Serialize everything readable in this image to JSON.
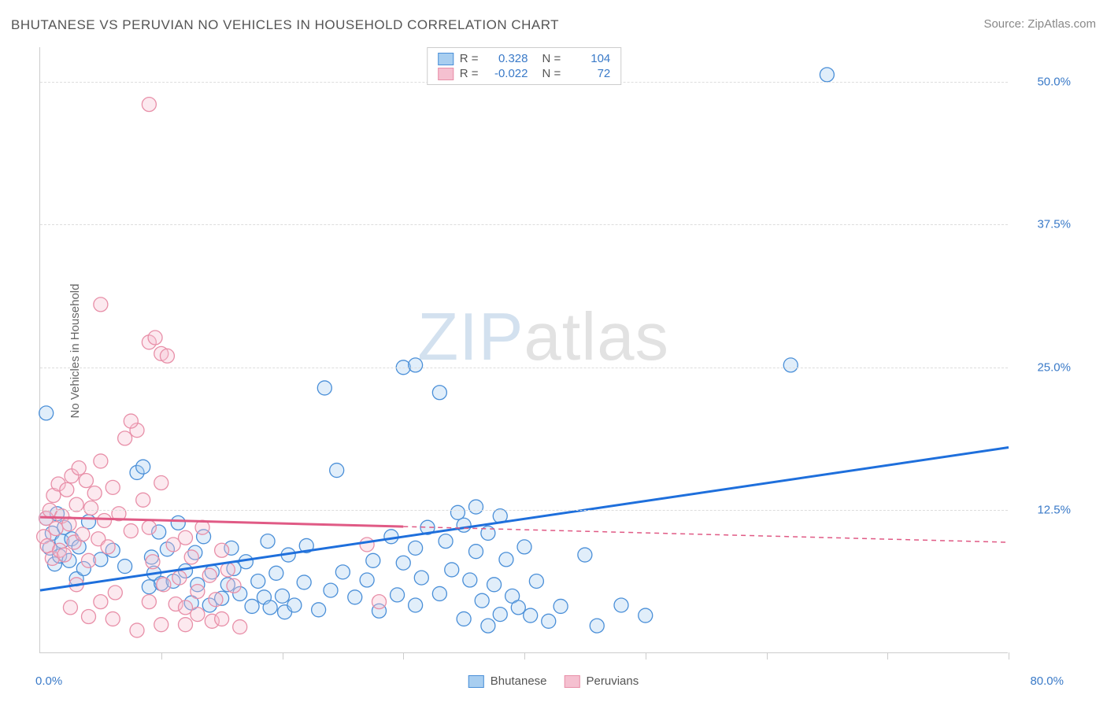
{
  "title": "BHUTANESE VS PERUVIAN NO VEHICLES IN HOUSEHOLD CORRELATION CHART",
  "source": "Source: ZipAtlas.com",
  "chart": {
    "type": "scatter",
    "ylabel": "No Vehicles in Household",
    "xlim": [
      0,
      80
    ],
    "ylim": [
      0,
      53
    ],
    "xtick_step": 10,
    "ytick_step": 12.5,
    "xaxis_min_label": "0.0%",
    "xaxis_max_label": "80.0%",
    "ytick_labels": [
      "12.5%",
      "25.0%",
      "37.5%",
      "50.0%"
    ],
    "background_color": "#ffffff",
    "grid_color": "#dddddd",
    "axis_color": "#cccccc",
    "tick_label_color": "#3a7ac8",
    "axis_label_color": "#666666",
    "marker_radius": 9,
    "marker_stroke_width": 1.3,
    "marker_fill_opacity": 0.35,
    "trend_line_width": 3,
    "trend_dash_pattern": "6,5",
    "watermark": {
      "part1": "ZIP",
      "part2": "atlas"
    }
  },
  "series": [
    {
      "name": "Bhutanese",
      "color_stroke": "#4a8fd8",
      "color_fill": "#a8cef0",
      "trend_color": "#1e6fdc",
      "R": "0.328",
      "N": "104",
      "trend": {
        "x1": 0,
        "y1": 5.5,
        "x2": 80,
        "y2": 18.0,
        "solid_until_x": 80
      },
      "points": [
        [
          0.5,
          11.8
        ],
        [
          0.8,
          9.2
        ],
        [
          1.0,
          10.5
        ],
        [
          1.2,
          7.8
        ],
        [
          1.4,
          12.2
        ],
        [
          1.6,
          8.5
        ],
        [
          1.8,
          9.8
        ],
        [
          2.0,
          11.0
        ],
        [
          2.4,
          8.1
        ],
        [
          2.6,
          10.0
        ],
        [
          3.0,
          6.5
        ],
        [
          3.2,
          9.3
        ],
        [
          3.6,
          7.4
        ],
        [
          4.0,
          11.5
        ],
        [
          5.0,
          8.2
        ],
        [
          6.0,
          9.0
        ],
        [
          7.0,
          7.6
        ],
        [
          8.0,
          15.8
        ],
        [
          8.5,
          16.3
        ],
        [
          9.0,
          5.8
        ],
        [
          9.2,
          8.4
        ],
        [
          9.4,
          7.0
        ],
        [
          9.8,
          10.6
        ],
        [
          10.0,
          6.1
        ],
        [
          10.5,
          9.1
        ],
        [
          11.0,
          6.3
        ],
        [
          11.4,
          11.4
        ],
        [
          12.0,
          7.2
        ],
        [
          12.5,
          4.4
        ],
        [
          12.8,
          8.8
        ],
        [
          13.0,
          6.0
        ],
        [
          13.5,
          10.2
        ],
        [
          14.0,
          4.2
        ],
        [
          14.2,
          7.1
        ],
        [
          15.0,
          4.8
        ],
        [
          15.5,
          6.0
        ],
        [
          15.8,
          9.2
        ],
        [
          16.0,
          7.4
        ],
        [
          16.5,
          5.2
        ],
        [
          17.0,
          8.0
        ],
        [
          17.5,
          4.1
        ],
        [
          18.0,
          6.3
        ],
        [
          18.5,
          4.9
        ],
        [
          18.8,
          9.8
        ],
        [
          19.0,
          4.0
        ],
        [
          19.5,
          7.0
        ],
        [
          20.0,
          5.0
        ],
        [
          20.2,
          3.6
        ],
        [
          20.5,
          8.6
        ],
        [
          21.0,
          4.2
        ],
        [
          21.8,
          6.2
        ],
        [
          22.0,
          9.4
        ],
        [
          23.0,
          3.8
        ],
        [
          23.5,
          23.2
        ],
        [
          24.0,
          5.5
        ],
        [
          24.5,
          16.0
        ],
        [
          25.0,
          7.1
        ],
        [
          26.0,
          4.9
        ],
        [
          27.0,
          6.4
        ],
        [
          27.5,
          8.1
        ],
        [
          28.0,
          3.7
        ],
        [
          29.0,
          10.2
        ],
        [
          29.5,
          5.1
        ],
        [
          30.0,
          7.9
        ],
        [
          30.0,
          25.0
        ],
        [
          31.0,
          25.2
        ],
        [
          31.0,
          4.2
        ],
        [
          31.0,
          9.2
        ],
        [
          31.5,
          6.6
        ],
        [
          32.0,
          11.0
        ],
        [
          33.0,
          22.8
        ],
        [
          33.0,
          5.2
        ],
        [
          33.5,
          9.8
        ],
        [
          34.0,
          7.3
        ],
        [
          34.5,
          12.3
        ],
        [
          35.0,
          3.0
        ],
        [
          35.0,
          11.2
        ],
        [
          35.5,
          6.4
        ],
        [
          36.0,
          8.9
        ],
        [
          36.0,
          12.8
        ],
        [
          36.5,
          4.6
        ],
        [
          37.0,
          10.5
        ],
        [
          37.0,
          2.4
        ],
        [
          37.5,
          6.0
        ],
        [
          38.0,
          12.0
        ],
        [
          38.0,
          3.4
        ],
        [
          38.5,
          8.2
        ],
        [
          39.0,
          5.0
        ],
        [
          39.5,
          4.0
        ],
        [
          40.0,
          9.3
        ],
        [
          40.5,
          3.3
        ],
        [
          41.0,
          6.3
        ],
        [
          42.0,
          2.8
        ],
        [
          43.0,
          4.1
        ],
        [
          45.0,
          8.6
        ],
        [
          46.0,
          2.4
        ],
        [
          48.0,
          4.2
        ],
        [
          50.0,
          3.3
        ],
        [
          62.0,
          25.2
        ],
        [
          65.0,
          50.6
        ],
        [
          0.5,
          21.0
        ]
      ]
    },
    {
      "name": "Peruvians",
      "color_stroke": "#e88fa8",
      "color_fill": "#f5c0d0",
      "trend_color": "#e05a85",
      "R": "-0.022",
      "N": "72",
      "trend": {
        "x1": 0,
        "y1": 11.9,
        "x2": 80,
        "y2": 9.7,
        "solid_until_x": 30
      },
      "points": [
        [
          0.3,
          10.2
        ],
        [
          0.5,
          11.8
        ],
        [
          0.6,
          9.4
        ],
        [
          0.8,
          12.5
        ],
        [
          1.0,
          8.3
        ],
        [
          1.1,
          13.8
        ],
        [
          1.3,
          10.9
        ],
        [
          1.5,
          14.8
        ],
        [
          1.6,
          9.0
        ],
        [
          1.8,
          12.0
        ],
        [
          2.0,
          8.6
        ],
        [
          2.2,
          14.3
        ],
        [
          2.4,
          11.3
        ],
        [
          2.6,
          15.5
        ],
        [
          2.8,
          9.7
        ],
        [
          3.0,
          13.0
        ],
        [
          3.2,
          16.2
        ],
        [
          3.5,
          10.4
        ],
        [
          3.8,
          15.1
        ],
        [
          4.0,
          8.1
        ],
        [
          4.2,
          12.7
        ],
        [
          4.5,
          14.0
        ],
        [
          4.8,
          10.0
        ],
        [
          5.0,
          16.8
        ],
        [
          5.3,
          11.6
        ],
        [
          5.6,
          9.3
        ],
        [
          6.0,
          14.5
        ],
        [
          6.5,
          12.2
        ],
        [
          7.0,
          18.8
        ],
        [
          7.5,
          10.7
        ],
        [
          8.0,
          19.5
        ],
        [
          8.5,
          13.4
        ],
        [
          9.0,
          11.0
        ],
        [
          9.0,
          27.2
        ],
        [
          9.3,
          8.0
        ],
        [
          9.5,
          27.6
        ],
        [
          10.0,
          14.9
        ],
        [
          10.0,
          26.2
        ],
        [
          10.5,
          26.0
        ],
        [
          10.2,
          6.0
        ],
        [
          11.0,
          9.5
        ],
        [
          11.2,
          4.3
        ],
        [
          11.5,
          6.6
        ],
        [
          12.0,
          4.0
        ],
        [
          12.0,
          10.1
        ],
        [
          12.5,
          8.4
        ],
        [
          13.0,
          5.4
        ],
        [
          13.4,
          11.0
        ],
        [
          14.0,
          6.8
        ],
        [
          14.5,
          4.7
        ],
        [
          15.0,
          9.0
        ],
        [
          15.5,
          7.3
        ],
        [
          9.0,
          48.0
        ],
        [
          16.0,
          5.9
        ],
        [
          2.5,
          4.0
        ],
        [
          3.0,
          6.0
        ],
        [
          4.0,
          3.2
        ],
        [
          5.0,
          4.5
        ],
        [
          6.0,
          3.0
        ],
        [
          6.2,
          5.3
        ],
        [
          8.0,
          2.0
        ],
        [
          9.0,
          4.5
        ],
        [
          10.0,
          2.5
        ],
        [
          12.0,
          2.5
        ],
        [
          13.0,
          3.4
        ],
        [
          14.2,
          2.8
        ],
        [
          15.0,
          3.0
        ],
        [
          16.5,
          2.3
        ],
        [
          27.0,
          9.5
        ],
        [
          28.0,
          4.5
        ],
        [
          5.0,
          30.5
        ],
        [
          7.5,
          20.3
        ]
      ]
    }
  ],
  "legend_top": {
    "label_R": "R =",
    "label_N": "N ="
  },
  "legend_bottom": [
    {
      "label": "Bhutanese",
      "stroke": "#4a8fd8",
      "fill": "#a8cef0"
    },
    {
      "label": "Peruvians",
      "stroke": "#e88fa8",
      "fill": "#f5c0d0"
    }
  ]
}
